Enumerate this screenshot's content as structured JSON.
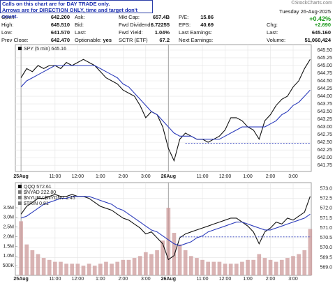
{
  "header": {
    "note": [
      "Calls on this chart are for DAY TRADE only.",
      "Arrows are for DIRECTION ONLY, time and target don't count."
    ],
    "quote": [
      [
        {
          "label": "Open:",
          "value": "642.200"
        },
        {
          "label": "Ask:"
        },
        {
          "label": "Mkt Cap:",
          "value": "657.4B"
        },
        {
          "label": "P/E:",
          "value": "15.86"
        }
      ],
      [
        {
          "label": "High:",
          "value": "645.510"
        },
        {
          "label": "Bid:"
        },
        {
          "label": "Fwd Dividend:",
          "value": "6.72255"
        },
        {
          "label": "EPS:",
          "value": "40.69"
        }
      ],
      [
        {
          "label": "Low:",
          "value": "641.570"
        },
        {
          "label": "Last:"
        },
        {
          "label": "Fwd Yield:",
          "value": "1.04%"
        },
        {
          "label": "Last Earnings:"
        }
      ],
      [
        {
          "label": "Prev Close:",
          "value": "642.470"
        },
        {
          "label": "Optionable:",
          "value": "yes"
        },
        {
          "label": "SCTR (ETF)",
          "value": "67.2"
        },
        {
          "label": "Next Earnings:"
        }
      ]
    ],
    "date": "Tuesday 26-Aug-2025",
    "change_pct": "+0.42%",
    "stats": [
      {
        "label": "Chg:",
        "value": "+2.690"
      },
      {
        "label": "Last:",
        "value": "645.160"
      },
      {
        "label": "Volume:",
        "value": "51,060,424"
      }
    ],
    "credit": "©StockCharts.com"
  },
  "chart_data": [
    {
      "type": "line",
      "legend": [
        "SPY (5 min) 645.16"
      ],
      "x": [
        0,
        0.25,
        0.5,
        0.75,
        1,
        1.25,
        1.5,
        1.75,
        2,
        2.25,
        2.5,
        2.75,
        3,
        3.25,
        3.5,
        3.75,
        4,
        4.25,
        4.5,
        4.75,
        5,
        5.25,
        5.5,
        5.75,
        6,
        6.25,
        6.5,
        6.75,
        7,
        7.25,
        7.5,
        7.75,
        8,
        8.25,
        8.5,
        8.75,
        9,
        9.25,
        9.5,
        9.75,
        10,
        10.25,
        10.5,
        10.75,
        11,
        11.25,
        11.5,
        11.75,
        12,
        12.25,
        12.5,
        12.75
      ],
      "series": [
        {
          "color": "#111111",
          "values": [
            644.6,
            644.9,
            644.8,
            645.0,
            644.9,
            645.0,
            645.0,
            644.9,
            645.1,
            645.0,
            645.1,
            645.2,
            645.1,
            645.0,
            644.8,
            644.6,
            644.5,
            644.4,
            644.2,
            644.1,
            644.0,
            643.7,
            643.3,
            643.5,
            643.4,
            643.0,
            642.3,
            641.9,
            642.6,
            642.8,
            642.7,
            642.6,
            642.6,
            642.5,
            642.6,
            642.7,
            642.9,
            643.3,
            643.3,
            643.2,
            643.0,
            642.9,
            642.6,
            643.2,
            643.4,
            643.7,
            643.9,
            644.0,
            644.3,
            644.5,
            644.9,
            645.2
          ]
        },
        {
          "color": "#2b3bbb",
          "values": [
            644.3,
            644.5,
            644.6,
            644.7,
            644.8,
            644.9,
            645.0,
            645.0,
            645.0,
            645.0,
            645.0,
            645.0,
            645.0,
            645.0,
            644.9,
            644.8,
            644.7,
            644.6,
            644.4,
            644.3,
            644.1,
            643.9,
            643.7,
            643.5,
            643.4,
            643.2,
            643.0,
            642.8,
            642.7,
            642.7,
            642.7,
            642.6,
            642.6,
            642.6,
            642.6,
            642.6,
            642.7,
            642.8,
            642.9,
            643.0,
            643.0,
            643.0,
            643.0,
            643.0,
            643.1,
            643.2,
            643.4,
            643.5,
            643.7,
            643.8,
            644.0,
            644.2
          ]
        }
      ],
      "levels": [
        {
          "value": 642.47,
          "from": 7.25,
          "color": "#2b3bbb"
        }
      ],
      "xlim": [
        -0.25,
        12.8
      ],
      "xticks": [
        {
          "value": 0,
          "label": "25Aug"
        },
        {
          "value": 1.5,
          "label": "11:00"
        },
        {
          "value": 2.5,
          "label": "12:00"
        },
        {
          "value": 3.5,
          "label": "1:00"
        },
        {
          "value": 4.5,
          "label": "2:00"
        },
        {
          "value": 5.5,
          "label": "3:00"
        },
        {
          "value": 6.5,
          "label": "26Aug"
        },
        {
          "value": 8,
          "label": "11:00"
        },
        {
          "value": 9,
          "label": "12:00"
        },
        {
          "value": 10,
          "label": "1:00"
        },
        {
          "value": 11,
          "label": "2:00"
        },
        {
          "value": 12,
          "label": "3:00"
        }
      ],
      "ylim": [
        641.55,
        645.68
      ],
      "yticks": [
        641.75,
        {
          "value": 642,
          "label": "642.00"
        },
        642.25,
        {
          "value": 642.5,
          "label": "642.50"
        },
        642.75,
        {
          "value": 643,
          "label": "643.00"
        },
        643.25,
        {
          "value": 643.5,
          "label": "643.50"
        },
        643.75,
        {
          "value": 644,
          "label": "644.00"
        },
        644.25,
        {
          "value": 644.5,
          "label": "644.50"
        },
        644.75,
        {
          "value": 645,
          "label": "645.00"
        },
        645.25,
        {
          "value": 645.5,
          "label": "645.50"
        }
      ],
      "grid": true
    },
    {
      "type": "line",
      "legend": [
        "QQQ 572.61",
        "$NYAD 222.80",
        "$NYUPV:$NYDNV 1.45",
        "$TRIN 0.81"
      ],
      "x": [
        0,
        0.25,
        0.5,
        0.75,
        1,
        1.25,
        1.5,
        1.75,
        2,
        2.25,
        2.5,
        2.75,
        3,
        3.25,
        3.5,
        3.75,
        4,
        4.25,
        4.5,
        4.75,
        5,
        5.25,
        5.5,
        5.75,
        6,
        6.25,
        6.5,
        6.75,
        7,
        7.25,
        7.5,
        7.75,
        8,
        8.25,
        8.5,
        8.75,
        9,
        9.25,
        9.5,
        9.75,
        10,
        10.25,
        10.5,
        10.75,
        11,
        11.25,
        11.5,
        11.75,
        12,
        12.25,
        12.5,
        12.75
      ],
      "series": [
        {
          "color": "#cc9999",
          "kind": "bar",
          "axis": "y2",
          "values": [
            2800000,
            1600000,
            1300000,
            1100000,
            900000,
            800000,
            700000,
            700000,
            600000,
            600000,
            600000,
            500000,
            600000,
            500000,
            600000,
            700000,
            600000,
            700000,
            800000,
            800000,
            900000,
            1000000,
            1200000,
            1100000,
            1300000,
            1800000,
            3500000,
            2200000,
            1600000,
            1300000,
            1000000,
            900000,
            800000,
            700000,
            700000,
            700000,
            600000,
            600000,
            600000,
            700000,
            800000,
            800000,
            1100000,
            900000,
            800000,
            700000,
            800000,
            900000,
            1000000,
            1100000,
            1300000,
            2400000
          ]
        },
        {
          "color": "#111111",
          "values": [
            571.7,
            572.1,
            572.3,
            572.5,
            572.5,
            572.6,
            572.7,
            572.6,
            572.6,
            572.7,
            572.6,
            572.6,
            572.5,
            572.3,
            572.1,
            572.0,
            571.9,
            571.7,
            571.5,
            571.4,
            571.2,
            571.0,
            570.7,
            570.8,
            570.5,
            570.2,
            569.4,
            569.6,
            570.5,
            570.7,
            570.8,
            570.9,
            571.0,
            571.1,
            571.2,
            571.3,
            571.4,
            571.5,
            571.5,
            571.3,
            571.1,
            570.8,
            570.2,
            570.8,
            571.0,
            571.3,
            571.2,
            571.5,
            571.4,
            571.6,
            571.8,
            572.6
          ]
        },
        {
          "color": "#2b3bbb",
          "values": [
            571.5,
            571.6,
            571.8,
            572.0,
            572.2,
            572.3,
            572.4,
            572.5,
            572.5,
            572.6,
            572.6,
            572.6,
            572.6,
            572.5,
            572.4,
            572.3,
            572.2,
            572.0,
            571.9,
            571.7,
            571.5,
            571.3,
            571.1,
            570.9,
            570.8,
            570.6,
            570.4,
            570.2,
            570.1,
            570.2,
            570.3,
            570.5,
            570.6,
            570.8,
            570.9,
            571.0,
            571.1,
            571.2,
            571.3,
            571.3,
            571.2,
            571.1,
            571.0,
            570.9,
            570.9,
            571.0,
            571.1,
            571.2,
            571.3,
            571.4,
            571.5,
            571.7
          ]
        }
      ],
      "levels": [
        {
          "value": 570.55,
          "from": 7,
          "color": "#2b3bbb"
        }
      ],
      "xlim": [
        -0.25,
        12.8
      ],
      "xticks": [
        {
          "value": 0,
          "label": "25Aug"
        },
        {
          "value": 1.5,
          "label": "11:00"
        },
        {
          "value": 2.5,
          "label": "12:00"
        },
        {
          "value": 3.5,
          "label": "1:00"
        },
        {
          "value": 4.5,
          "label": "2:00"
        },
        {
          "value": 5.5,
          "label": "3:00"
        },
        {
          "value": 6.5,
          "label": "26Aug"
        },
        {
          "value": 8,
          "label": "11:00"
        },
        {
          "value": 9,
          "label": "12:00"
        },
        {
          "value": 10,
          "label": "1:00"
        },
        {
          "value": 11,
          "label": "2:00"
        },
        {
          "value": 12,
          "label": "3:00"
        }
      ],
      "ylim": [
        568.6,
        573.3
      ],
      "yticks": [
        {
          "value": 569,
          "label": "569.0"
        },
        569.5,
        {
          "value": 570,
          "label": "570.0"
        },
        570.5,
        {
          "value": 571,
          "label": "571.0"
        },
        571.5,
        {
          "value": 572,
          "label": "572.0"
        },
        572.5,
        {
          "value": 573,
          "label": "573.0"
        }
      ],
      "y2lim": [
        0,
        4800000
      ],
      "y2ticks": [
        {
          "value": 500000,
          "label": "500K"
        },
        {
          "value": 1000000,
          "label": "1.0M"
        },
        {
          "value": 1500000,
          "label": "1.5M"
        },
        {
          "value": 2000000,
          "label": "2.0M"
        },
        {
          "value": 2500000,
          "label": "2.5M"
        },
        {
          "value": 3000000,
          "label": "3.0M"
        },
        {
          "value": 3500000,
          "label": "3.5M"
        }
      ],
      "grid": true
    }
  ]
}
